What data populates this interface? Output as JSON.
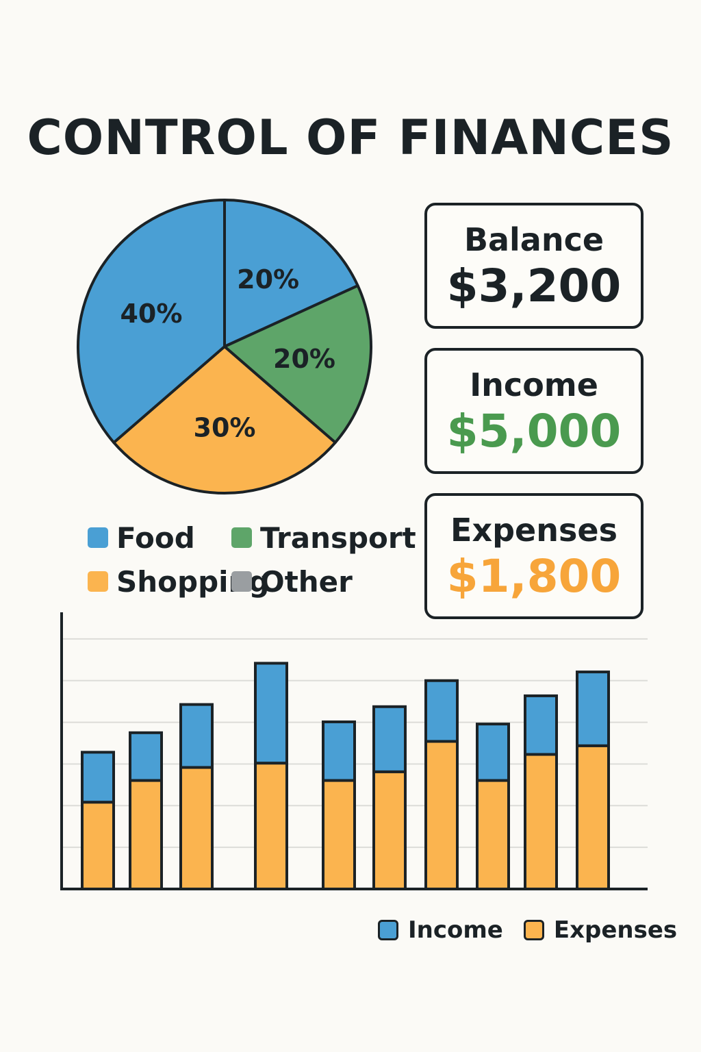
{
  "title": "CONTROL OF FINANCES",
  "colors": {
    "blue": "#4a9fd4",
    "green": "#5ea569",
    "orange": "#fbb44f",
    "gray": "#9a9ea1",
    "income_green": "#4a9a4f",
    "expense_orange": "#f7a53a",
    "outline": "#1b2226"
  },
  "cards": {
    "balance": {
      "label": "Balance",
      "value": "$3,200"
    },
    "income": {
      "label": "Income",
      "value": "$5,000"
    },
    "expenses": {
      "label": "Expenses",
      "value": "$1,800"
    }
  },
  "pie_legend": {
    "food": "Food",
    "transport": "Transport",
    "shopping": "Shopping",
    "other": "Other"
  },
  "bar_legend": {
    "income": "Income",
    "expenses": "Expenses"
  },
  "chart_data": [
    {
      "type": "pie",
      "slices": [
        {
          "label": "20%",
          "value": 20,
          "color": "#4a9fd4"
        },
        {
          "label": "20%",
          "value": 20,
          "color": "#5ea569"
        },
        {
          "label": "30%",
          "value": 30,
          "color": "#fbb44f"
        },
        {
          "label": "40%",
          "value": 40,
          "color": "#4a9fd4"
        }
      ]
    },
    {
      "type": "bar",
      "stacked": true,
      "grid": true,
      "ylim": [
        0,
        6.5
      ],
      "series": [
        {
          "name": "Expenses",
          "color": "#fbb44f",
          "values": [
            2.0,
            2.5,
            2.8,
            2.9,
            2.5,
            2.7,
            3.4,
            2.5,
            3.1,
            3.3
          ]
        },
        {
          "name": "Income",
          "color": "#4a9fd4",
          "values": [
            1.15,
            1.1,
            1.45,
            2.3,
            1.35,
            1.5,
            1.4,
            1.3,
            1.35,
            1.7
          ]
        }
      ]
    }
  ]
}
